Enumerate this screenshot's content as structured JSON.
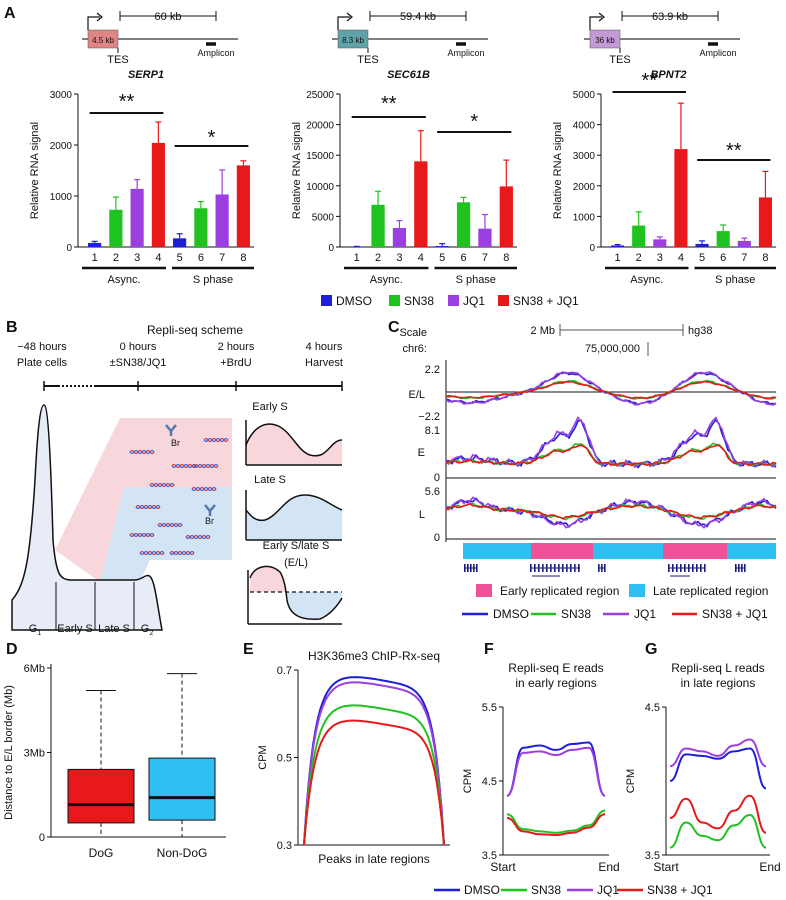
{
  "panels": {
    "A": "A",
    "B": "B",
    "C": "C",
    "D": "D",
    "E": "E",
    "F": "F",
    "G": "G"
  },
  "colors": {
    "DMSO": "#1f1fd8",
    "SN38": "#1fc21f",
    "JQ1": "#9b3fe0",
    "SN38_JQ1": "#e8191b",
    "early": "#f0529a",
    "late": "#2ec0f0"
  },
  "panelA": {
    "genes": [
      {
        "name": "SERP1",
        "gene_box": "4.5 kb",
        "distance": "60 kb",
        "tes": "TES",
        "amplicon": "Amplicon",
        "box_color": "#e08585",
        "sig": {
          "async": "**",
          "s": "*"
        }
      },
      {
        "name": "SEC61B",
        "gene_box": "8.3 kb",
        "distance": "59.4 kb",
        "tes": "TES",
        "amplicon": "Amplicon",
        "box_color": "#5fa3a8",
        "sig": {
          "async": "**",
          "s": "*"
        }
      },
      {
        "name": "BPNT2",
        "gene_box": "36 kb",
        "distance": "63.9 kb",
        "tes": "TES",
        "amplicon": "Amplicon",
        "box_color": "#c39ad6",
        "sig": {
          "async": "**",
          "s": "**"
        }
      }
    ],
    "group_labels": [
      "Async.",
      "S phase"
    ],
    "legend": [
      "DMSO",
      "SN38",
      "JQ1",
      "SN38 + JQ1"
    ]
  },
  "chart_data": [
    {
      "id": "A-SERP1",
      "type": "bar",
      "title": "SERP1",
      "ylabel": "Relative RNA signal",
      "categories": [
        "1",
        "2",
        "3",
        "4",
        "5",
        "6",
        "7",
        "8"
      ],
      "values": [
        80,
        730,
        1140,
        2040,
        170,
        760,
        1030,
        1600
      ],
      "errors": [
        30,
        250,
        180,
        410,
        90,
        130,
        480,
        90
      ],
      "ylim": [
        0,
        3000
      ],
      "yticks": [
        0,
        1000,
        2000,
        3000
      ]
    },
    {
      "id": "A-SEC61B",
      "type": "bar",
      "title": "SEC61B",
      "ylabel": "Relative RNA signal",
      "categories": [
        "1",
        "2",
        "3",
        "4",
        "5",
        "6",
        "7",
        "8"
      ],
      "values": [
        50,
        6900,
        3100,
        14000,
        150,
        7300,
        3000,
        9900
      ],
      "errors": [
        50,
        2200,
        1200,
        5000,
        400,
        800,
        2300,
        4300
      ],
      "ylim": [
        0,
        25000
      ],
      "yticks": [
        0,
        5000,
        10000,
        15000,
        20000,
        25000
      ]
    },
    {
      "id": "A-BPNT2",
      "type": "bar",
      "title": "BPNT2",
      "ylabel": "Relative RNA signal",
      "categories": [
        "1",
        "2",
        "3",
        "4",
        "5",
        "6",
        "7",
        "8"
      ],
      "values": [
        50,
        700,
        250,
        3200,
        100,
        520,
        200,
        1620
      ],
      "errors": [
        30,
        450,
        80,
        1500,
        100,
        200,
        90,
        850
      ],
      "ylim": [
        0,
        5000
      ],
      "yticks": [
        0,
        1000,
        2000,
        3000,
        4000,
        5000
      ]
    },
    {
      "id": "D",
      "type": "box",
      "ylabel": "Distance to E/L border (Mb)",
      "categories": [
        "DoG",
        "Non-DoG"
      ],
      "yticks": [
        "0",
        "3Mb",
        "6Mb"
      ],
      "ylim": [
        0,
        6
      ],
      "boxes": [
        {
          "min": 0,
          "q1": 0.5,
          "median": 1.15,
          "q3": 2.4,
          "max": 5.2
        },
        {
          "min": 0,
          "q1": 0.6,
          "median": 1.4,
          "q3": 2.8,
          "max": 5.8
        }
      ]
    },
    {
      "id": "E",
      "type": "line",
      "title": "H3K36me3 ChIP-Rx-seq",
      "ylabel": "CPM",
      "xlabel": "Peaks in late regions",
      "ylim": [
        0.3,
        0.7
      ],
      "yticks": [
        "0.3",
        "0.5",
        "0.7"
      ],
      "series": [
        {
          "name": "DMSO",
          "plateau": 0.68
        },
        {
          "name": "JQ1",
          "plateau": 0.668
        },
        {
          "name": "SN38",
          "plateau": 0.615
        },
        {
          "name": "SN38 + JQ1",
          "plateau": 0.58
        }
      ]
    },
    {
      "id": "F",
      "type": "line",
      "title": "Repli-seq E reads in early regions",
      "ylabel": "CPM",
      "xticks": [
        "Start",
        "End"
      ],
      "ylim": [
        3.5,
        5.5
      ],
      "yticks": [
        "3.5",
        "4.5",
        "5.5"
      ],
      "series": [
        {
          "name": "DMSO",
          "values": [
            4.3,
            4.95,
            4.98,
            4.92,
            5.0,
            5.02,
            4.3
          ]
        },
        {
          "name": "JQ1",
          "values": [
            4.3,
            4.88,
            4.9,
            4.85,
            4.92,
            4.95,
            4.3
          ]
        },
        {
          "name": "SN38",
          "values": [
            4.05,
            3.85,
            3.82,
            3.8,
            3.83,
            3.9,
            4.1
          ]
        },
        {
          "name": "SN38 + JQ1",
          "values": [
            4.0,
            3.82,
            3.78,
            3.77,
            3.8,
            3.87,
            4.05
          ]
        }
      ]
    },
    {
      "id": "G",
      "type": "line",
      "title": "Repli-seq L reads in late regions",
      "ylabel": "CPM",
      "xticks": [
        "Start",
        "End"
      ],
      "ylim": [
        3.5,
        4.5
      ],
      "yticks": [
        "3.5",
        "4.5"
      ],
      "series": [
        {
          "name": "DMSO",
          "values": [
            4.0,
            4.18,
            4.17,
            4.15,
            4.2,
            4.22,
            3.95
          ]
        },
        {
          "name": "JQ1",
          "values": [
            4.1,
            4.22,
            4.2,
            4.17,
            4.24,
            4.28,
            4.1
          ]
        },
        {
          "name": "SN38 + JQ1",
          "values": [
            3.75,
            3.88,
            3.72,
            3.68,
            3.8,
            3.9,
            3.65
          ]
        },
        {
          "name": "SN38",
          "values": [
            3.55,
            3.72,
            3.63,
            3.6,
            3.7,
            3.77,
            3.55
          ]
        }
      ]
    }
  ],
  "panelB": {
    "title": "Repli-seq scheme",
    "timeline": [
      {
        "time": "−48 hours",
        "label": "Plate cells"
      },
      {
        "time": "0 hours",
        "label": "±SN38/JQ1"
      },
      {
        "time": "2 hours",
        "label": "+BrdU"
      },
      {
        "time": "4 hours",
        "label": "Harvest"
      }
    ],
    "phases": [
      "G",
      "Early S",
      "Late S",
      "G"
    ],
    "g_subscripts": [
      "1",
      "2"
    ],
    "insets": [
      "Early S",
      "Late S",
      "Early S/late S",
      "(E/L)"
    ],
    "brdu": "Br"
  },
  "panelC": {
    "scale": "Scale",
    "chrom": "chr6:",
    "scale_bar": "2 Mb",
    "assembly": "hg38",
    "coordinate": "75,000,000",
    "tracks": [
      {
        "name": "E/L",
        "ymax": "2.2",
        "ymin": "−2.2"
      },
      {
        "name": "E",
        "ymax": "8.1",
        "ymin": "0"
      },
      {
        "name": "L",
        "ymax": "5.6",
        "ymin": "0"
      }
    ],
    "region_legend": [
      "Early replicated region",
      "Late replicated region"
    ]
  },
  "legend_series": [
    "DMSO",
    "SN38",
    "JQ1",
    "SN38 + JQ1"
  ]
}
